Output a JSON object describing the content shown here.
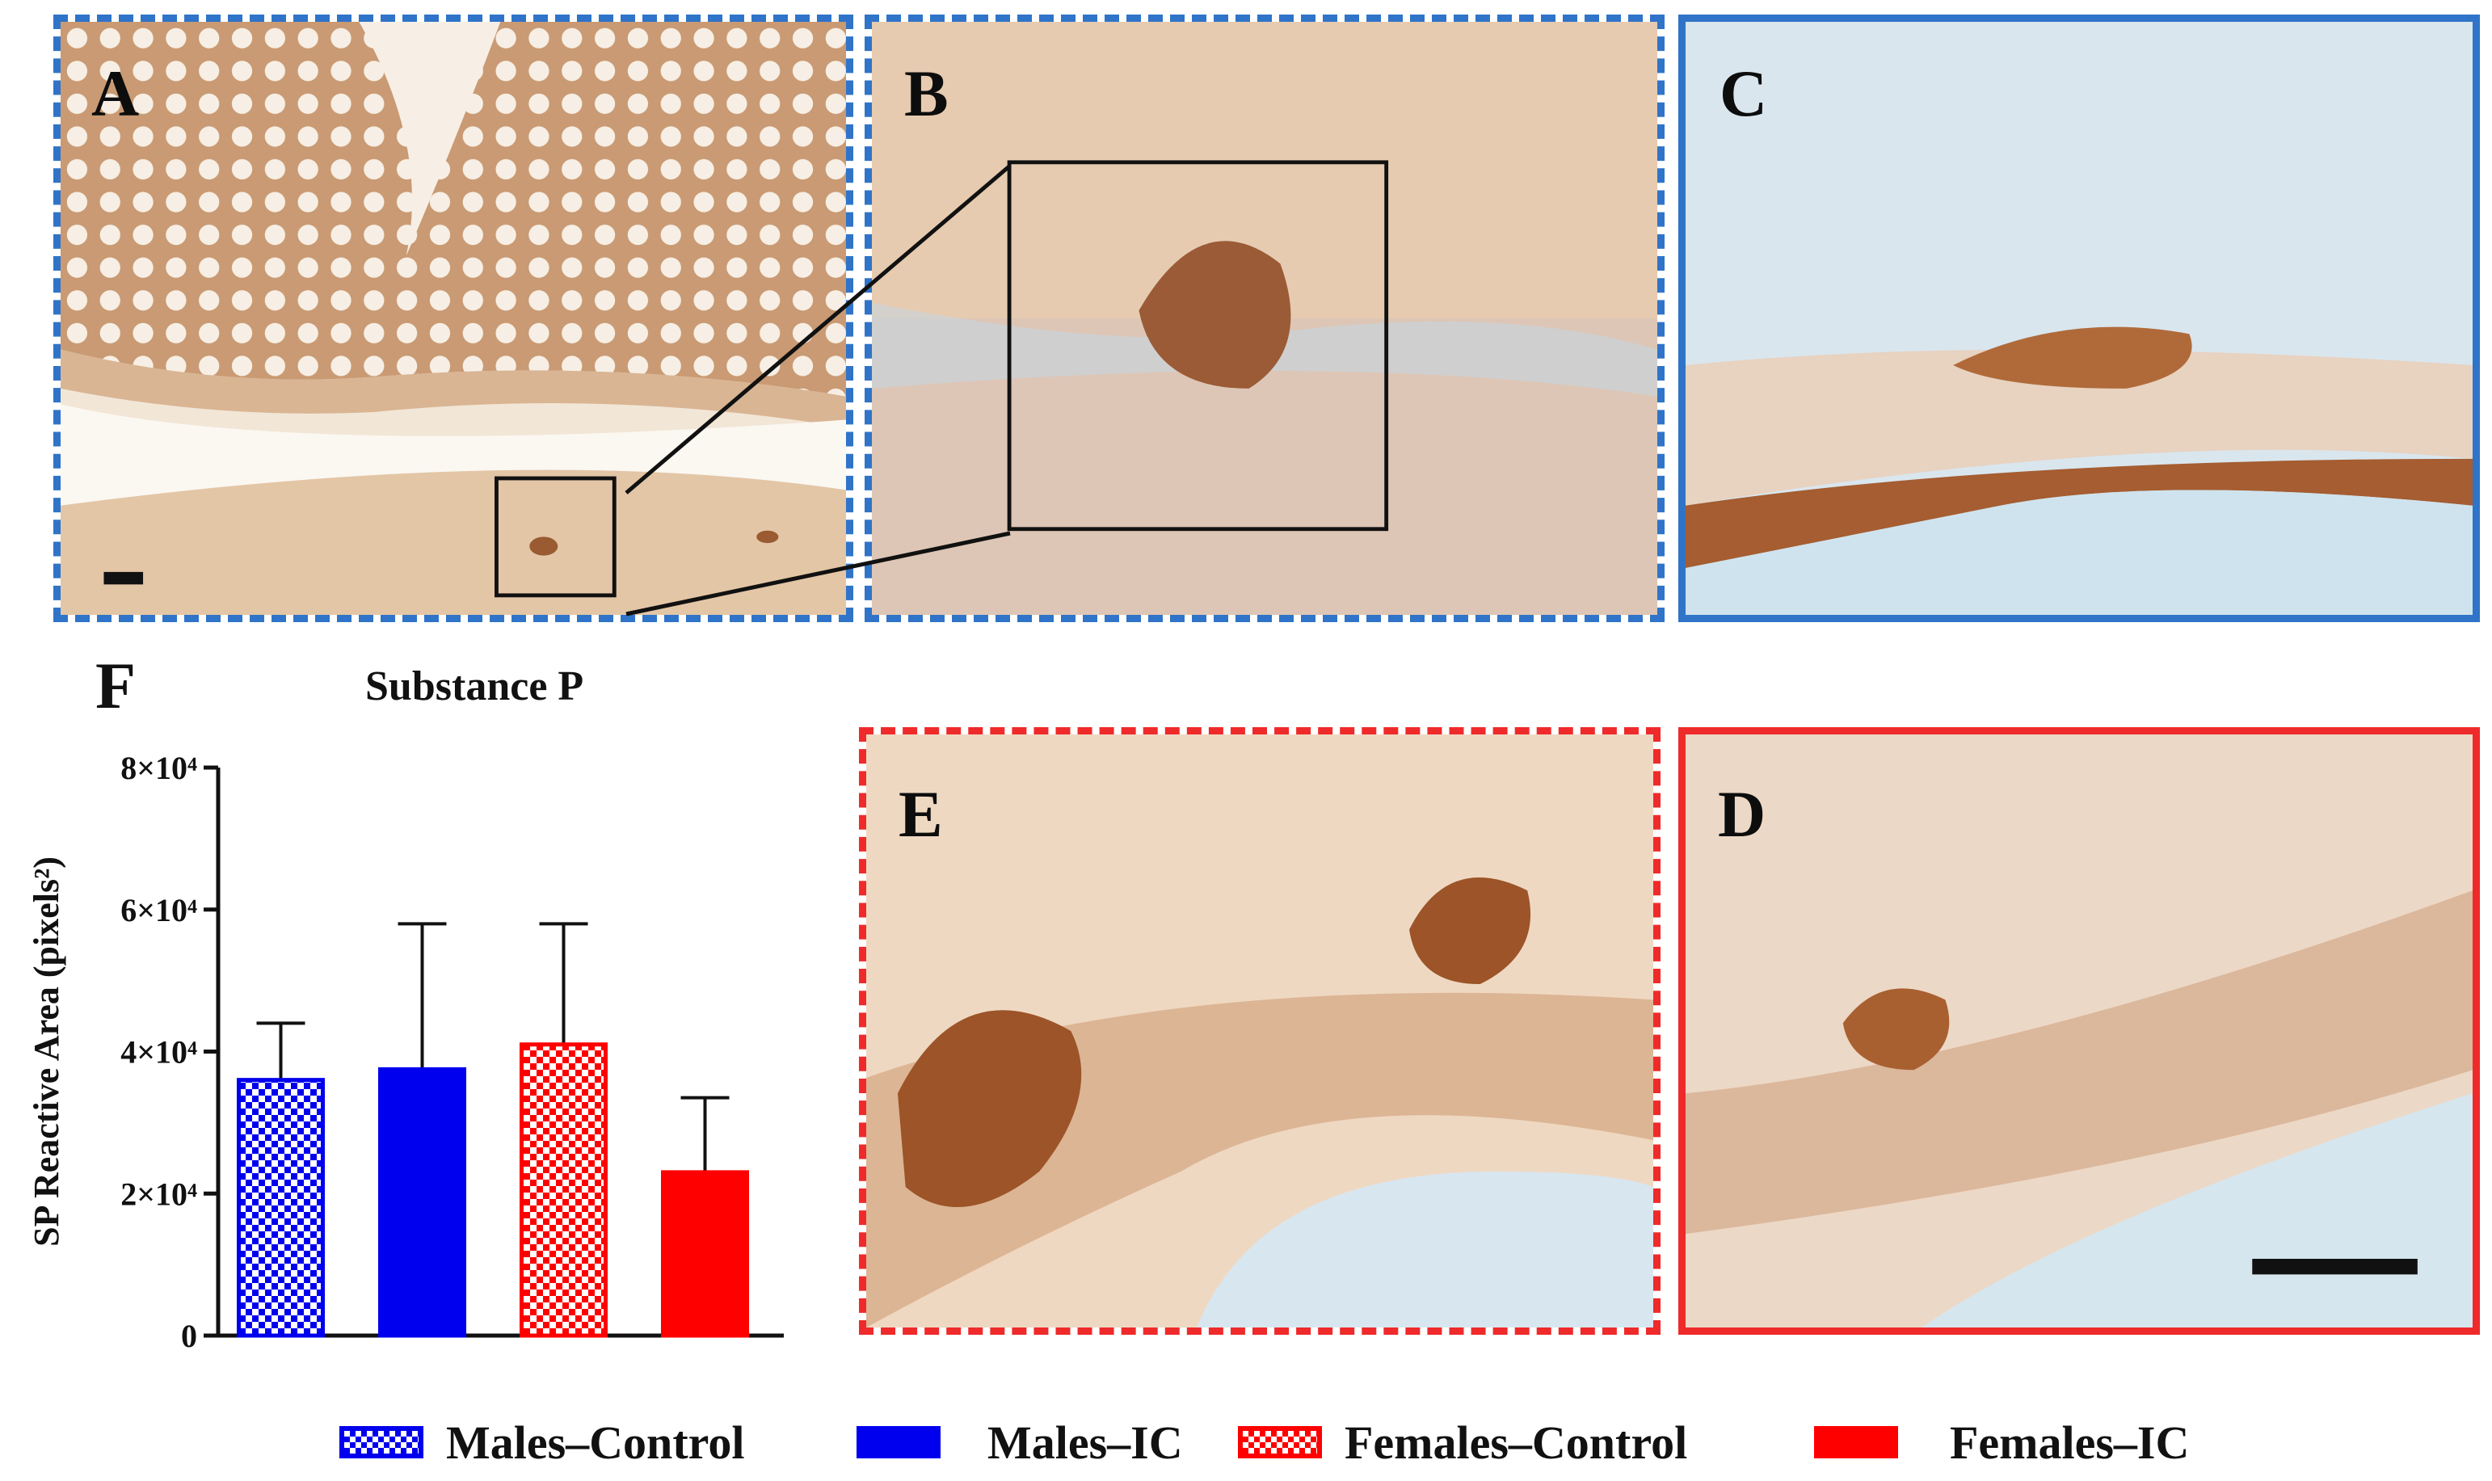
{
  "panels": {
    "a": {
      "letter": "A",
      "border": "blue-dashed"
    },
    "b": {
      "letter": "B",
      "border": "blue-dashed"
    },
    "c": {
      "letter": "C",
      "border": "blue-solid"
    },
    "d": {
      "letter": "D",
      "border": "red-solid"
    },
    "e": {
      "letter": "E",
      "border": "red-dashed"
    },
    "f": {
      "letter": "F"
    }
  },
  "colors": {
    "male": "#0000ee",
    "female": "#ff0000",
    "tissue_stain": "#b06a3a",
    "tissue_background": "#f1e3d0"
  },
  "chart_data": {
    "type": "bar",
    "title": "Substance P",
    "xlabel": "",
    "ylabel": "SP Reactive Area (pixels²)",
    "ylim": [
      0,
      80000
    ],
    "yticks": [
      {
        "value": 0,
        "label": "0"
      },
      {
        "value": 20000,
        "label": "2×10⁴"
      },
      {
        "value": 40000,
        "label": "4×10⁴"
      },
      {
        "value": 60000,
        "label": "6×10⁴"
      },
      {
        "value": 80000,
        "label": "8×10⁴"
      }
    ],
    "grid": false,
    "legend_position": "bottom",
    "series": [
      {
        "name": "Males–Control",
        "value": 36000,
        "error": 8000,
        "color": "#0000ee",
        "pattern": "checker"
      },
      {
        "name": "Males–IC",
        "value": 37500,
        "error": 20500,
        "color": "#0000ee",
        "pattern": "solid"
      },
      {
        "name": "Females–Control",
        "value": 41000,
        "error": 17000,
        "color": "#ff0000",
        "pattern": "checker"
      },
      {
        "name": "Females–IC",
        "value": 23000,
        "error": 10500,
        "color": "#ff0000",
        "pattern": "solid"
      }
    ]
  }
}
